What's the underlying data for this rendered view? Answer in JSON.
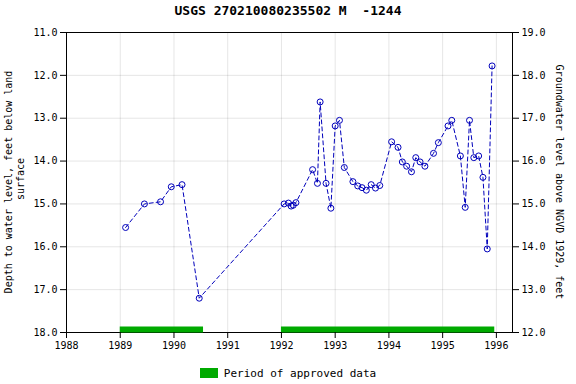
{
  "chart_data": {
    "type": "line",
    "title": "USGS 270210080235502 M  -1244",
    "ylabel": "Depth to water level, feet below land\n surface",
    "y2label": "Groundwater level above NGVD 1929, feet",
    "x": [
      1989.1,
      1989.45,
      1989.75,
      1989.95,
      1990.15,
      1990.47,
      1992.05,
      1992.13,
      1992.18,
      1992.22,
      1992.27,
      1992.58,
      1992.67,
      1992.72,
      1992.83,
      1992.92,
      1993.0,
      1993.08,
      1993.17,
      1993.33,
      1993.42,
      1993.5,
      1993.58,
      1993.67,
      1993.75,
      1993.83,
      1994.05,
      1994.17,
      1994.25,
      1994.33,
      1994.42,
      1994.5,
      1994.58,
      1994.67,
      1994.83,
      1994.92,
      1995.1,
      1995.17,
      1995.33,
      1995.42,
      1995.5,
      1995.58,
      1995.67,
      1995.75,
      1995.83,
      1995.92
    ],
    "series": [
      {
        "color": "#0000bb",
        "marker": "o",
        "line_style": "dashed",
        "values": [
          15.55,
          15.0,
          14.95,
          14.6,
          14.55,
          17.2,
          15.0,
          14.98,
          15.05,
          15.03,
          14.97,
          14.2,
          14.52,
          12.62,
          14.52,
          15.1,
          13.18,
          13.05,
          14.15,
          14.48,
          14.58,
          14.62,
          14.68,
          14.55,
          14.63,
          14.57,
          13.55,
          13.68,
          14.02,
          14.12,
          14.25,
          13.92,
          14.02,
          14.12,
          13.82,
          13.57,
          13.18,
          13.05,
          13.88,
          15.08,
          13.05,
          13.92,
          13.88,
          14.38,
          16.05,
          11.78
        ]
      }
    ],
    "xlim": [
      1988.0,
      1996.3
    ],
    "xticks": [
      1988,
      1989,
      1990,
      1991,
      1992,
      1993,
      1994,
      1995,
      1996
    ],
    "ylim": [
      18.0,
      11.0
    ],
    "yticks": [
      {
        "value": 11.0,
        "label": "11.0"
      },
      {
        "value": 12.0,
        "label": "12.0"
      },
      {
        "value": 13.0,
        "label": "13.0"
      },
      {
        "value": 14.0,
        "label": "14.0"
      },
      {
        "value": 15.0,
        "label": "15.0"
      },
      {
        "value": 16.0,
        "label": "16.0"
      },
      {
        "value": 17.0,
        "label": "17.0"
      },
      {
        "value": 18.0,
        "label": "18.0"
      }
    ],
    "y2lim": [
      12.0,
      19.0
    ],
    "y2ticks": [
      {
        "value": 12.0,
        "label": "12.0"
      },
      {
        "value": 13.0,
        "label": "13.0"
      },
      {
        "value": 14.0,
        "label": "14.0"
      },
      {
        "value": 15.0,
        "label": "15.0"
      },
      {
        "value": 16.0,
        "label": "16.0"
      },
      {
        "value": 17.0,
        "label": "17.0"
      },
      {
        "value": 18.0,
        "label": "18.0"
      },
      {
        "value": 19.0,
        "label": "19.0"
      }
    ],
    "grid": true,
    "legend": "bottom",
    "approved_periods": {
      "name": "Period of approved data",
      "color": "#00aa00",
      "ranges": [
        [
          1989.0,
          1990.55
        ],
        [
          1992.0,
          1995.97
        ]
      ]
    }
  }
}
